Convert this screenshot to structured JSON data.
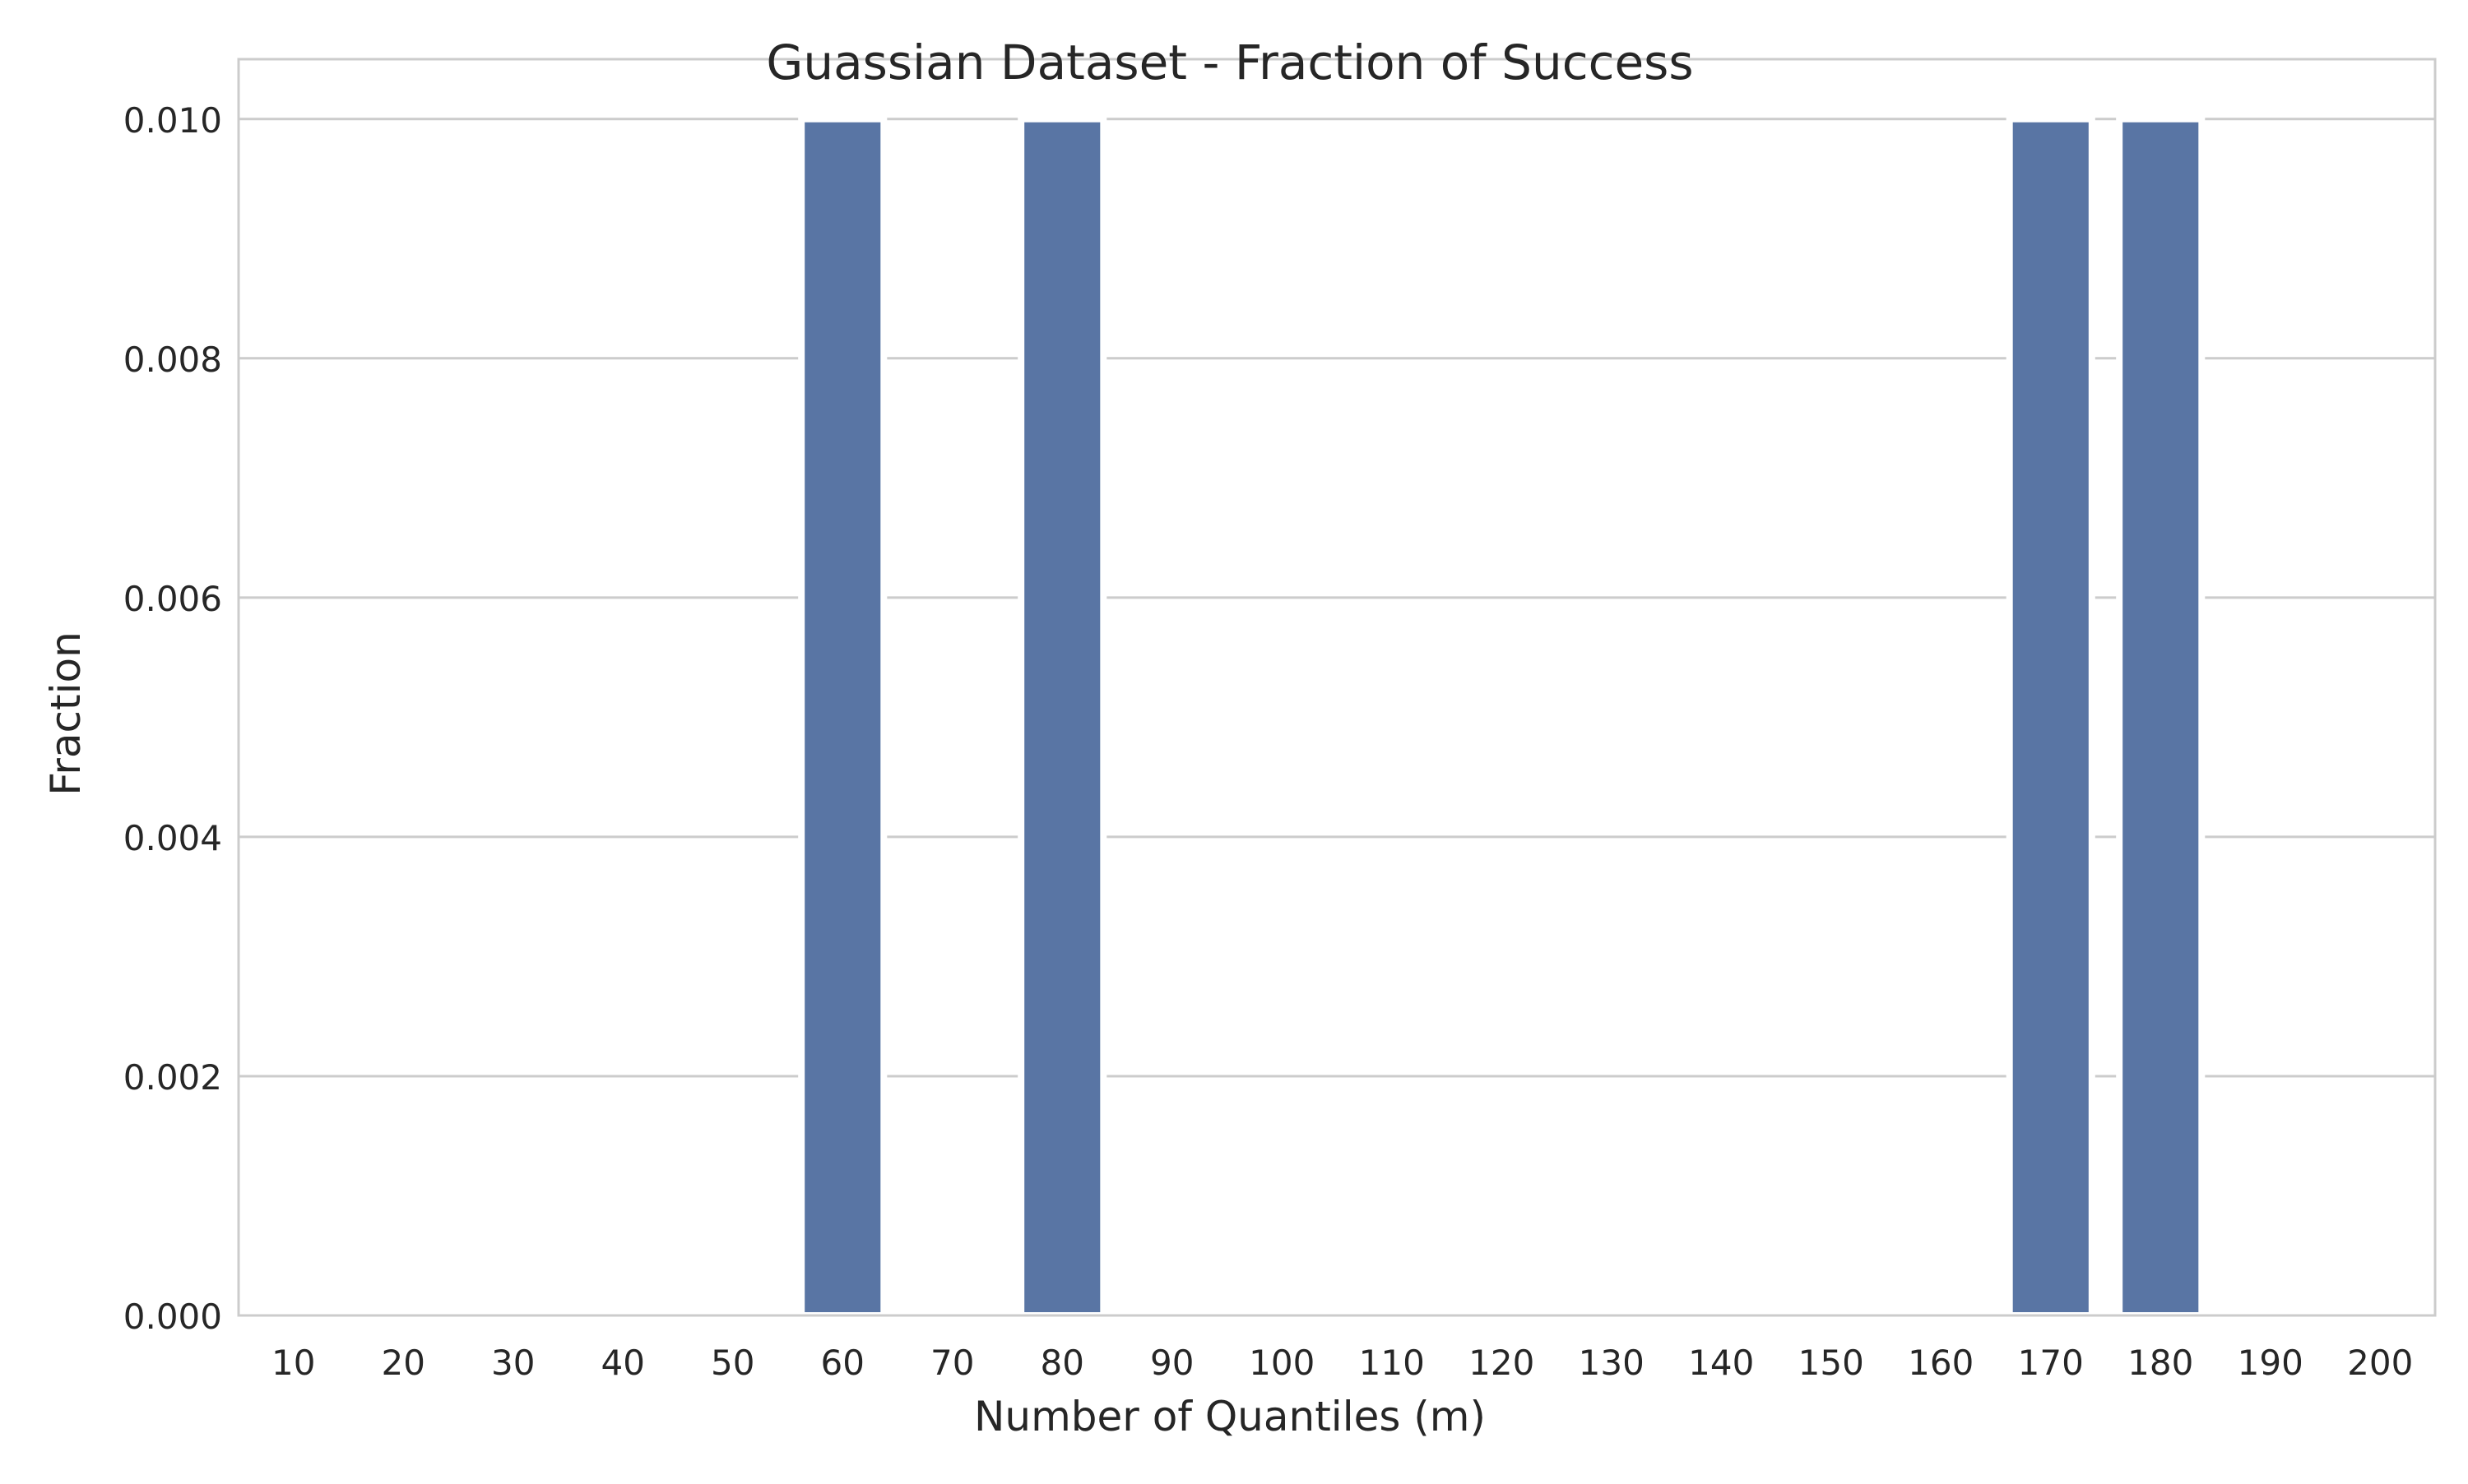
{
  "chart_data": {
    "type": "bar",
    "title": "Guassian Dataset - Fraction of Success",
    "xlabel": "Number of Quantiles (m)",
    "ylabel": "Fraction",
    "categories": [
      "10",
      "20",
      "30",
      "40",
      "50",
      "60",
      "70",
      "80",
      "90",
      "100",
      "110",
      "120",
      "130",
      "140",
      "150",
      "160",
      "170",
      "180",
      "190",
      "200"
    ],
    "values": [
      0,
      0,
      0,
      0,
      0,
      0.01,
      0,
      0.01,
      0,
      0,
      0,
      0,
      0,
      0,
      0,
      0,
      0.01,
      0.01,
      0,
      0
    ],
    "ylim": [
      0,
      0.0105
    ],
    "yticks": [
      0.0,
      0.002,
      0.004,
      0.006,
      0.008,
      0.01
    ],
    "ytick_labels": [
      "0.000",
      "0.002",
      "0.004",
      "0.006",
      "0.008",
      "0.010"
    ],
    "grid": "horizontal",
    "bar_color": "#5975a4",
    "grid_color": "#cccccc",
    "frame_color": "#cccccc"
  }
}
